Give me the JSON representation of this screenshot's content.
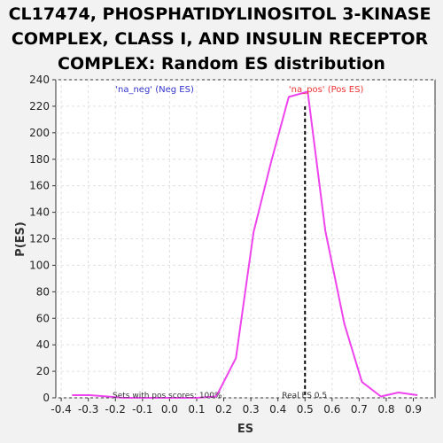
{
  "chart_data": {
    "type": "line",
    "title_lines": [
      "CL17474, PHOSPHATIDYLINOSITOL 3-KINASE",
      "COMPLEX, CLASS I, AND INSULIN RECEPTOR",
      "COMPLEX: Random ES distribution"
    ],
    "xlabel": "ES",
    "ylabel": "P(ES)",
    "xlim": [
      -0.42,
      0.98
    ],
    "ylim": [
      0,
      240
    ],
    "x_ticks": [
      "-0.4",
      "-0.3",
      "-0.2",
      "-0.1",
      "0.0",
      "0.1",
      "0.2",
      "0.3",
      "0.4",
      "0.5",
      "0.6",
      "0.7",
      "0.8",
      "0.9"
    ],
    "y_ticks": [
      "0",
      "20",
      "40",
      "60",
      "80",
      "100",
      "120",
      "140",
      "160",
      "180",
      "200",
      "220",
      "240"
    ],
    "grid": true,
    "series": [
      {
        "color": "#ee44ee",
        "x": [
          -0.36,
          -0.295,
          -0.23,
          -0.17,
          -0.1,
          -0.035,
          0.03,
          0.1,
          0.17,
          0.18,
          0.245,
          0.31,
          0.375,
          0.44,
          0.51,
          0.575,
          0.645,
          0.71,
          0.78,
          0.845,
          0.915
        ],
        "y": [
          2,
          2,
          1,
          0,
          0,
          0,
          0,
          0,
          1,
          4,
          30,
          125,
          178,
          227,
          231,
          126,
          56,
          12,
          1,
          4,
          2
        ]
      }
    ],
    "vline": {
      "x": 0.5,
      "label": "Real ES 0.5",
      "color": "#000000"
    },
    "annotations": {
      "neg": {
        "text": "'na_neg' (Neg ES)",
        "color": "#3333cc"
      },
      "pos": {
        "text": "'na_pos' (Pos ES)",
        "color": "#ee3333"
      },
      "footer": {
        "text": "Sets with pos scores: 100%"
      }
    }
  }
}
